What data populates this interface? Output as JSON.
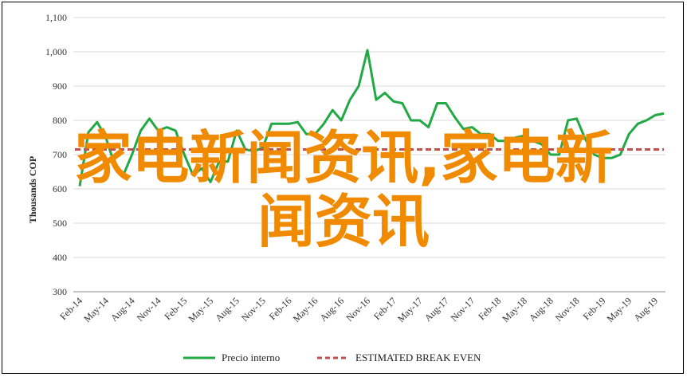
{
  "chart_data": {
    "type": "line",
    "ylabel": "Thousands COP",
    "ylim": [
      300,
      1100
    ],
    "yticks": [
      "300",
      "400",
      "500",
      "600",
      "700",
      "800",
      "900",
      "1,000",
      "1,100"
    ],
    "grid": "horizontal",
    "legend_position": "bottom",
    "x_tick_labels": [
      "Feb-14",
      "May-14",
      "Aug-14",
      "Nov-14",
      "Feb-15",
      "May-15",
      "Aug-15",
      "Nov-15",
      "Feb-16",
      "May-16",
      "Aug-16",
      "Nov-16",
      "Feb-17",
      "May-17",
      "Aug-17",
      "Nov-17",
      "Feb-18",
      "May-18",
      "Aug-18",
      "Nov-18",
      "Feb-19",
      "May-19",
      "Aug-19"
    ],
    "series": [
      {
        "name": "Precio interno",
        "color": "#22a845",
        "style": "solid",
        "values": [
          608,
          765,
          795,
          750,
          670,
          640,
          700,
          770,
          805,
          770,
          780,
          770,
          700,
          640,
          660,
          620,
          680,
          680,
          770,
          715,
          710,
          720,
          790,
          790,
          790,
          795,
          760,
          760,
          790,
          830,
          800,
          860,
          900,
          1005,
          860,
          880,
          855,
          850,
          800,
          800,
          780,
          850,
          850,
          810,
          775,
          780,
          760,
          760,
          740,
          740,
          750,
          755,
          740,
          730,
          700,
          700,
          800,
          805,
          745,
          700,
          690,
          690,
          700,
          760,
          790,
          800,
          815,
          820
        ]
      },
      {
        "name": "ESTIMATED BREAK EVEN",
        "color": "#c0504d",
        "style": "dashed",
        "values": [
          715,
          715
        ]
      }
    ]
  },
  "overlay_text": {
    "line1": "家电新闻资讯,家电新",
    "line2": "闻资讯"
  }
}
